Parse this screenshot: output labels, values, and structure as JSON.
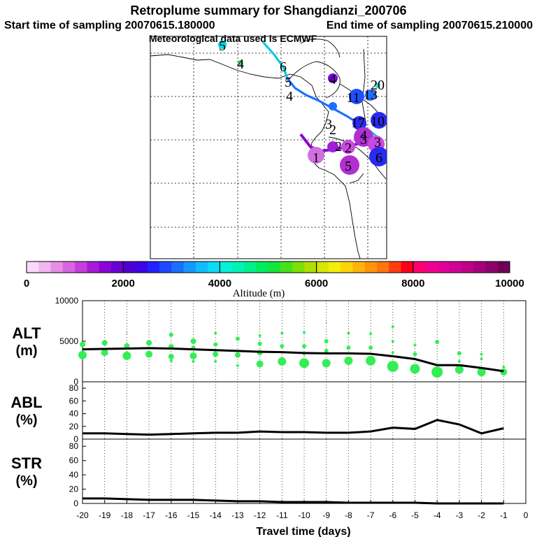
{
  "header": {
    "title": "Retroplume summary for Shangdianzi_200706",
    "start_time": "Start time of sampling 20070615.180000",
    "end_time": "End time of sampling 20070615.210000",
    "met_data": "Meteorological data used is ECMWF"
  },
  "map": {
    "path_labels": [
      {
        "text": "5",
        "color": "#00cccc"
      },
      {
        "text": "4",
        "color": "#33cc66"
      },
      {
        "text": "6",
        "color": "#00aacc"
      },
      {
        "text": "5",
        "color": "#0099dd"
      },
      {
        "text": "4",
        "color": "#0066cc"
      },
      {
        "text": "4",
        "color": "#8800cc"
      },
      {
        "text": "2",
        "color": "#3300cc"
      },
      {
        "text": "3",
        "color": "#0044dd"
      },
      {
        "text": "11",
        "color": "#0044dd"
      },
      {
        "text": "13",
        "color": "#0044dd"
      },
      {
        "text": "20",
        "color": "#33dddd"
      },
      {
        "text": "17",
        "color": "#1111cc"
      },
      {
        "text": "10",
        "color": "#1111cc"
      },
      {
        "text": "3",
        "color": "#7722dd"
      },
      {
        "text": "2",
        "color": "#aa22cc"
      },
      {
        "text": "4",
        "color": "#aa22cc"
      },
      {
        "text": "1",
        "color": "#cc44cc"
      },
      {
        "text": "2",
        "color": "#cc44cc"
      },
      {
        "text": "3",
        "color": "#bb33cc"
      },
      {
        "text": "5",
        "color": "#bb33cc"
      },
      {
        "text": "6",
        "color": "#1111cc"
      }
    ]
  },
  "colorbar": {
    "tick_labels": [
      "0",
      "2000",
      "4000",
      "6000",
      "8000",
      "10000"
    ],
    "axis_label": "Altitude  (m)",
    "colors": [
      "#f9d9f9",
      "#f0b6f0",
      "#e68ee6",
      "#d866e0",
      "#c43fd8",
      "#a71ad6",
      "#8a05d8",
      "#6c00d6",
      "#4f00cf",
      "#3a06e6",
      "#2122ff",
      "#1f49ff",
      "#1a6fff",
      "#1696ff",
      "#11bcff",
      "#0ddaf7",
      "#05f0d8",
      "#00f3b6",
      "#00f08a",
      "#00ec5f",
      "#13e43a",
      "#46e01c",
      "#7ae005",
      "#aee005",
      "#d8e605",
      "#f3ee0a",
      "#ffd30a",
      "#ffb40a",
      "#ff950a",
      "#ff750f",
      "#ff3d0f",
      "#ff001a",
      "#ff0070",
      "#f00090",
      "#e0009c",
      "#cf0094",
      "#bc0088",
      "#a5007a",
      "#8c006a",
      "#700058"
    ]
  },
  "chart_data": [
    {
      "type": "line",
      "panel": "ALT",
      "ylabel": "ALT",
      "yunit": "(m)",
      "ylim": [
        0,
        10000
      ],
      "yticks": [
        "10000",
        "5000",
        "0"
      ],
      "x": [
        -20,
        -19,
        -18,
        -17,
        -16,
        -15,
        -14,
        -13,
        -12,
        -11,
        -10,
        -9,
        -8,
        -7,
        -6,
        -5,
        -4,
        -3,
        -2,
        -1
      ],
      "values": [
        4000,
        4050,
        4100,
        4150,
        4100,
        4000,
        3900,
        3800,
        3700,
        3650,
        3550,
        3500,
        3500,
        3450,
        3150,
        2800,
        2050,
        2050,
        1700,
        1300
      ],
      "scatter_color": "#33ee55",
      "scatter_points": [
        {
          "x": -20,
          "y": 3300,
          "size": 6
        },
        {
          "x": -20,
          "y": 4600,
          "size": 4
        },
        {
          "x": -19,
          "y": 3600,
          "size": 5
        },
        {
          "x": -19,
          "y": 4800,
          "size": 4
        },
        {
          "x": -18,
          "y": 3200,
          "size": 6
        },
        {
          "x": -18,
          "y": 4400,
          "size": 4
        },
        {
          "x": -18,
          "y": 6000,
          "size": 1
        },
        {
          "x": -17,
          "y": 3400,
          "size": 5
        },
        {
          "x": -17,
          "y": 4800,
          "size": 4
        },
        {
          "x": -16,
          "y": 3100,
          "size": 4
        },
        {
          "x": -16,
          "y": 4300,
          "size": 4
        },
        {
          "x": -16,
          "y": 5800,
          "size": 3
        },
        {
          "x": -16,
          "y": 2600,
          "size": 2
        },
        {
          "x": -15,
          "y": 3200,
          "size": 5
        },
        {
          "x": -15,
          "y": 5000,
          "size": 4
        },
        {
          "x": -15,
          "y": 2500,
          "size": 2
        },
        {
          "x": -15,
          "y": 4200,
          "size": 3
        },
        {
          "x": -14,
          "y": 3400,
          "size": 4
        },
        {
          "x": -14,
          "y": 4600,
          "size": 3
        },
        {
          "x": -14,
          "y": 6000,
          "size": 2
        },
        {
          "x": -14,
          "y": 2500,
          "size": 2
        },
        {
          "x": -13,
          "y": 3300,
          "size": 4
        },
        {
          "x": -13,
          "y": 5300,
          "size": 3
        },
        {
          "x": -13,
          "y": 2000,
          "size": 2
        },
        {
          "x": -12,
          "y": 2200,
          "size": 5
        },
        {
          "x": -12,
          "y": 3600,
          "size": 4
        },
        {
          "x": -12,
          "y": 4700,
          "size": 3
        },
        {
          "x": -12,
          "y": 5700,
          "size": 2
        },
        {
          "x": -11,
          "y": 2500,
          "size": 6
        },
        {
          "x": -11,
          "y": 4400,
          "size": 3
        },
        {
          "x": -11,
          "y": 6000,
          "size": 2
        },
        {
          "x": -10,
          "y": 2300,
          "size": 7
        },
        {
          "x": -10,
          "y": 4400,
          "size": 3
        },
        {
          "x": -10,
          "y": 6100,
          "size": 2
        },
        {
          "x": -10,
          "y": 3400,
          "size": 2
        },
        {
          "x": -9,
          "y": 2300,
          "size": 6
        },
        {
          "x": -9,
          "y": 3800,
          "size": 3
        },
        {
          "x": -9,
          "y": 5000,
          "size": 3
        },
        {
          "x": -9,
          "y": 7300,
          "size": 1
        },
        {
          "x": -8,
          "y": 2600,
          "size": 6
        },
        {
          "x": -8,
          "y": 4200,
          "size": 3
        },
        {
          "x": -8,
          "y": 6000,
          "size": 2
        },
        {
          "x": -7,
          "y": 2600,
          "size": 7
        },
        {
          "x": -7,
          "y": 4200,
          "size": 3
        },
        {
          "x": -7,
          "y": 5900,
          "size": 2
        },
        {
          "x": -6,
          "y": 1900,
          "size": 8
        },
        {
          "x": -6,
          "y": 3600,
          "size": 2
        },
        {
          "x": -6,
          "y": 5000,
          "size": 2
        },
        {
          "x": -6,
          "y": 6800,
          "size": 2
        },
        {
          "x": -5,
          "y": 1600,
          "size": 7
        },
        {
          "x": -5,
          "y": 3400,
          "size": 3
        },
        {
          "x": -5,
          "y": 4500,
          "size": 2
        },
        {
          "x": -4,
          "y": 1200,
          "size": 8
        },
        {
          "x": -4,
          "y": 4900,
          "size": 3
        },
        {
          "x": -3,
          "y": 1500,
          "size": 6
        },
        {
          "x": -3,
          "y": 3500,
          "size": 3
        },
        {
          "x": -3,
          "y": 2500,
          "size": 2
        },
        {
          "x": -2,
          "y": 1200,
          "size": 6
        },
        {
          "x": -2,
          "y": 2800,
          "size": 2
        },
        {
          "x": -2,
          "y": 3400,
          "size": 2
        },
        {
          "x": -1,
          "y": 1200,
          "size": 5
        },
        {
          "x": -1,
          "y": 1800,
          "size": 2
        }
      ]
    },
    {
      "type": "line",
      "panel": "ABL",
      "ylabel": "ABL",
      "yunit": "(%)",
      "ylim": [
        0,
        90
      ],
      "yticks": [
        "80",
        "60",
        "40",
        "20",
        "0"
      ],
      "x": [
        -20,
        -19,
        -18,
        -17,
        -16,
        -15,
        -14,
        -13,
        -12,
        -11,
        -10,
        -9,
        -8,
        -7,
        -6,
        -5,
        -4,
        -3,
        -2,
        -1
      ],
      "values": [
        9,
        9,
        8,
        7,
        8,
        9,
        10,
        10,
        12,
        11,
        11,
        10,
        10,
        12,
        18,
        16,
        30,
        23,
        9,
        17
      ]
    },
    {
      "type": "line",
      "panel": "STR",
      "ylabel": "STR",
      "yunit": "(%)",
      "ylim": [
        0,
        90
      ],
      "yticks": [
        "80",
        "60",
        "40",
        "20",
        "0"
      ],
      "x": [
        -20,
        -19,
        -18,
        -17,
        -16,
        -15,
        -14,
        -13,
        -12,
        -11,
        -10,
        -9,
        -8,
        -7,
        -6,
        -5,
        -4,
        -3,
        -2,
        -1
      ],
      "values": [
        7,
        7,
        6,
        5,
        5,
        5,
        4,
        3,
        3,
        2,
        2,
        2,
        1,
        1,
        1,
        1,
        0,
        0,
        0,
        0
      ]
    }
  ],
  "x_axis": {
    "tick_labels": [
      "-20",
      "-19",
      "-18",
      "-17",
      "-16",
      "-15",
      "-14",
      "-13",
      "-12",
      "-11",
      "-10",
      "-9",
      "-8",
      "-7",
      "-6",
      "-5",
      "-4",
      "-3",
      "-2",
      "-1",
      "0"
    ],
    "label": "Travel time (days)"
  }
}
